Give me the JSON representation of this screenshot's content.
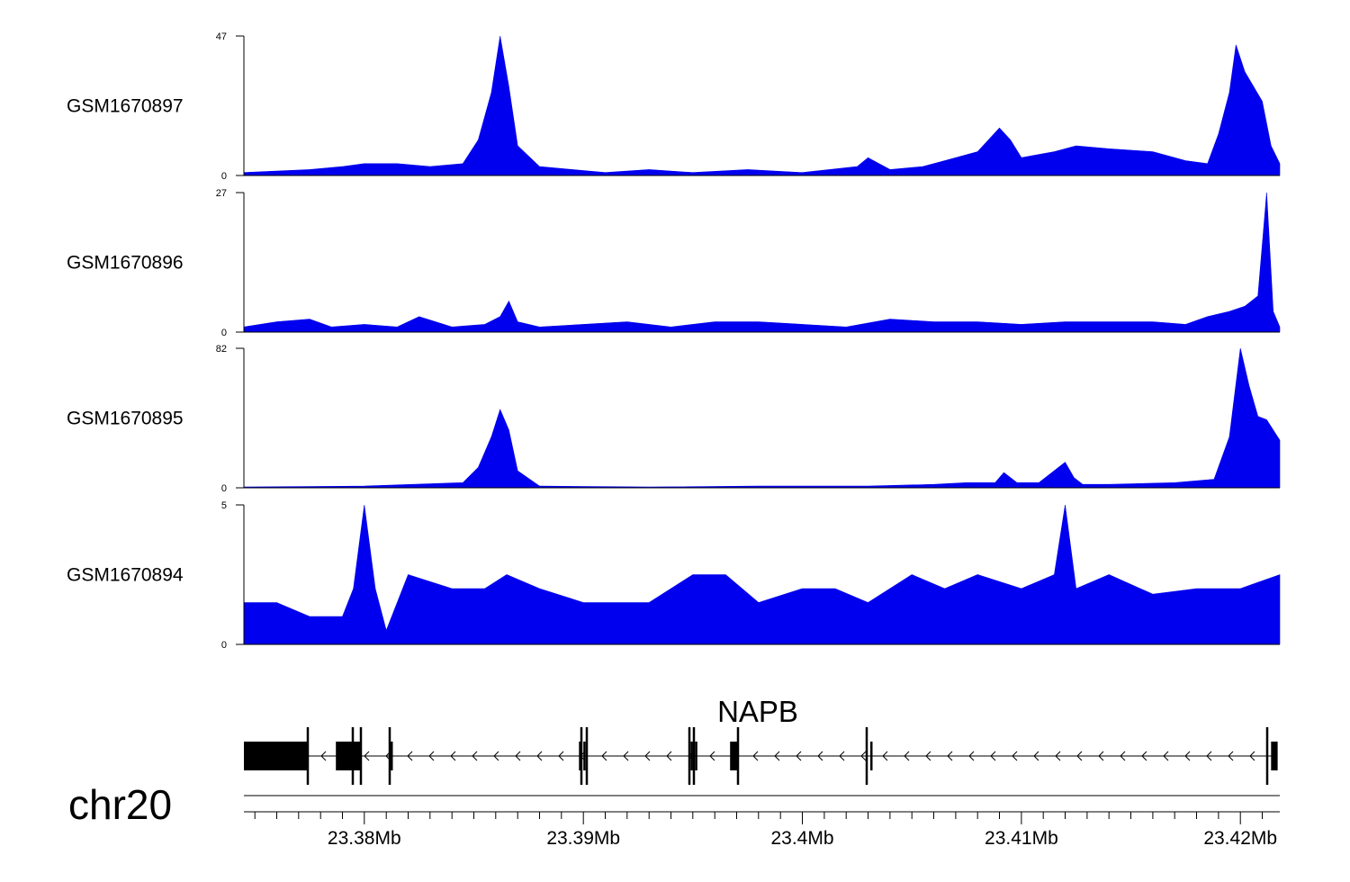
{
  "chart_data": {
    "type": "area",
    "chromosome": "chr20",
    "x_range": [
      23.3745,
      23.4218
    ],
    "x_unit": "Mb",
    "x_ticks": [
      {
        "value": 23.38,
        "label": "23.38Mb"
      },
      {
        "value": 23.39,
        "label": "23.39Mb"
      },
      {
        "value": 23.4,
        "label": "23.4Mb"
      },
      {
        "value": 23.41,
        "label": "23.41Mb"
      },
      {
        "value": 23.42,
        "label": "23.42Mb"
      }
    ],
    "series_color": "#0000ee",
    "tracks": [
      {
        "name": "GSM1670897",
        "ylim": [
          0,
          47
        ],
        "ytick_labels": [
          "47",
          "0"
        ],
        "x": [
          23.3745,
          23.376,
          23.3775,
          23.379,
          23.38,
          23.3815,
          23.383,
          23.3845,
          23.3852,
          23.3858,
          23.3862,
          23.3866,
          23.387,
          23.388,
          23.3895,
          23.391,
          23.393,
          23.395,
          23.3975,
          23.4,
          23.4025,
          23.403,
          23.404,
          23.4055,
          23.4065,
          23.408,
          23.409,
          23.4095,
          23.41,
          23.4115,
          23.4125,
          23.414,
          23.416,
          23.4175,
          23.4185,
          23.419,
          23.4195,
          23.4198,
          23.4202,
          23.4206,
          23.421,
          23.4214,
          23.4218
        ],
        "values": [
          1,
          1.5,
          2,
          3,
          4,
          4,
          3,
          4,
          12,
          28,
          47,
          30,
          10,
          3,
          2,
          1,
          2,
          1,
          2,
          1,
          3,
          6,
          2,
          3,
          5,
          8,
          16,
          12,
          6,
          8,
          10,
          9,
          8,
          5,
          4,
          14,
          28,
          44,
          35,
          30,
          25,
          10,
          4
        ]
      },
      {
        "name": "GSM1670896",
        "ylim": [
          0,
          27
        ],
        "ytick_labels": [
          "27",
          "0"
        ],
        "x": [
          23.3745,
          23.376,
          23.3775,
          23.3785,
          23.38,
          23.3815,
          23.3825,
          23.384,
          23.3855,
          23.3862,
          23.3866,
          23.387,
          23.388,
          23.39,
          23.392,
          23.394,
          23.396,
          23.398,
          23.4,
          23.402,
          23.404,
          23.406,
          23.408,
          23.41,
          23.412,
          23.414,
          23.416,
          23.4175,
          23.4185,
          23.4195,
          23.4202,
          23.4208,
          23.4212,
          23.4215,
          23.4218
        ],
        "values": [
          1,
          2,
          2.5,
          1,
          1.5,
          1,
          3,
          1,
          1.5,
          3,
          6,
          2,
          1,
          1.5,
          2,
          1,
          2,
          2,
          1.5,
          1,
          2.5,
          2,
          2,
          1.5,
          2,
          2,
          2,
          1.5,
          3,
          4,
          5,
          7,
          27,
          4,
          1
        ]
      },
      {
        "name": "GSM1670895",
        "ylim": [
          0,
          82
        ],
        "ytick_labels": [
          "82",
          "0"
        ],
        "x": [
          23.3745,
          23.38,
          23.3845,
          23.3852,
          23.3858,
          23.3862,
          23.3866,
          23.387,
          23.388,
          23.393,
          23.398,
          23.403,
          23.406,
          23.4075,
          23.4088,
          23.4092,
          23.4098,
          23.4108,
          23.412,
          23.4124,
          23.4128,
          23.414,
          23.417,
          23.4188,
          23.4195,
          23.42,
          23.4204,
          23.4208,
          23.4212,
          23.4216,
          23.4218
        ],
        "values": [
          0.5,
          1,
          3,
          12,
          30,
          46,
          34,
          10,
          1,
          0.5,
          1,
          1,
          2,
          3,
          3,
          9,
          3,
          3,
          15,
          6,
          2,
          2,
          3,
          5,
          30,
          82,
          60,
          42,
          40,
          32,
          28
        ]
      },
      {
        "name": "GSM1670894",
        "ylim": [
          0,
          5
        ],
        "ytick_labels": [
          "5",
          "0"
        ],
        "x": [
          23.3745,
          23.376,
          23.3775,
          23.379,
          23.3795,
          23.38,
          23.3805,
          23.381,
          23.382,
          23.384,
          23.3855,
          23.3865,
          23.388,
          23.39,
          23.3915,
          23.393,
          23.395,
          23.3965,
          23.398,
          23.4,
          23.4015,
          23.403,
          23.405,
          23.4065,
          23.408,
          23.41,
          23.4115,
          23.412,
          23.4125,
          23.414,
          23.416,
          23.418,
          23.42,
          23.4218
        ],
        "values": [
          1.5,
          1.5,
          1,
          1,
          2,
          5,
          2,
          0.5,
          2.5,
          2,
          2,
          2.5,
          2,
          1.5,
          1.5,
          1.5,
          2.5,
          2.5,
          1.5,
          2,
          2,
          1.5,
          2.5,
          2,
          2.5,
          2,
          2.5,
          5,
          2,
          2.5,
          1.8,
          2,
          2,
          2.5
        ]
      }
    ],
    "gene": {
      "name": "NAPB",
      "strand": "-",
      "start": 23.3745,
      "end": 23.4217,
      "exons": [
        {
          "start": 23.3745,
          "end": 23.3774,
          "coding": true
        },
        {
          "start": 23.3787,
          "end": 23.3798,
          "coding": true
        },
        {
          "start": 23.3812,
          "end": 23.3813,
          "coding": true
        },
        {
          "start": 23.3898,
          "end": 23.3899,
          "coding": true
        },
        {
          "start": 23.39,
          "end": 23.3901,
          "coding": true
        },
        {
          "start": 23.3949,
          "end": 23.395,
          "coding": true
        },
        {
          "start": 23.3951,
          "end": 23.3952,
          "coding": true
        },
        {
          "start": 23.3967,
          "end": 23.3971,
          "coding": true
        },
        {
          "start": 23.4031,
          "end": 23.4032,
          "coding": true
        },
        {
          "start": 23.4214,
          "end": 23.4217,
          "coding": true
        }
      ]
    }
  }
}
